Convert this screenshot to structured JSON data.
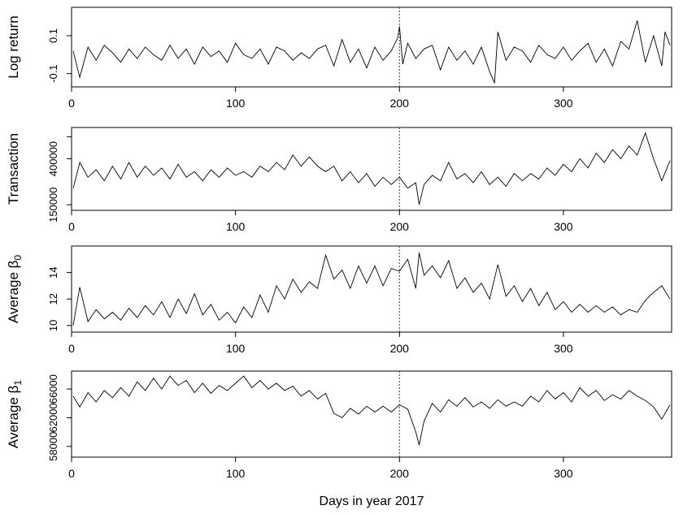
{
  "figure": {
    "xlabel": "Days in year 2017",
    "vline_x": 200,
    "vline_color": "#cc0000"
  },
  "chart_data": [
    {
      "type": "line",
      "ylabel": "Log return",
      "ylabel_sub": "",
      "xlim": [
        0,
        366
      ],
      "ylim": [
        -0.17,
        0.25
      ],
      "xticks": [
        0,
        100,
        200,
        300
      ],
      "yticks": [
        -0.1,
        0.1
      ],
      "ytick_labels": [
        "-0.1",
        "0.1"
      ],
      "series": [
        {
          "x": [
            1,
            5,
            10,
            15,
            20,
            25,
            30,
            35,
            40,
            45,
            50,
            55,
            60,
            65,
            70,
            75,
            80,
            85,
            90,
            95,
            100,
            105,
            110,
            115,
            120,
            125,
            130,
            135,
            140,
            145,
            150,
            155,
            160,
            165,
            170,
            175,
            180,
            185,
            190,
            195,
            199,
            200,
            202,
            205,
            210,
            215,
            220,
            225,
            230,
            235,
            240,
            245,
            250,
            255,
            258,
            260,
            265,
            270,
            275,
            280,
            285,
            290,
            295,
            300,
            305,
            310,
            315,
            320,
            325,
            330,
            335,
            340,
            345,
            350,
            355,
            360,
            362,
            365
          ],
          "y": [
            0.02,
            -0.12,
            0.04,
            -0.03,
            0.05,
            0.01,
            -0.04,
            0.03,
            -0.02,
            0.04,
            0.0,
            -0.03,
            0.05,
            -0.02,
            0.03,
            -0.05,
            0.04,
            -0.01,
            0.02,
            -0.04,
            0.06,
            0.0,
            -0.02,
            0.03,
            -0.05,
            0.04,
            0.02,
            -0.03,
            0.01,
            -0.02,
            0.03,
            0.05,
            -0.06,
            0.08,
            -0.04,
            0.03,
            -0.07,
            0.04,
            -0.03,
            0.02,
            0.09,
            0.15,
            -0.05,
            0.06,
            -0.02,
            0.03,
            0.05,
            -0.08,
            0.04,
            -0.03,
            0.02,
            -0.05,
            0.04,
            -0.09,
            -0.15,
            0.12,
            -0.03,
            0.04,
            0.02,
            -0.04,
            0.05,
            0.0,
            -0.02,
            0.04,
            -0.03,
            0.02,
            0.06,
            -0.04,
            0.03,
            -0.06,
            0.07,
            0.03,
            0.18,
            -0.04,
            0.1,
            -0.06,
            0.12,
            0.05
          ]
        }
      ]
    },
    {
      "type": "line",
      "ylabel": "Transaction",
      "ylabel_sub": "",
      "xlim": [
        0,
        366
      ],
      "ylim": [
        120000,
        570000
      ],
      "xticks": [
        0,
        100,
        200,
        300
      ],
      "yticks": [
        150000,
        400000
      ],
      "ytick_labels": [
        "150000",
        "400000"
      ],
      "extra_ytick": 520000,
      "series": [
        {
          "x": [
            1,
            5,
            10,
            15,
            20,
            25,
            30,
            35,
            40,
            45,
            50,
            55,
            60,
            65,
            70,
            75,
            80,
            85,
            90,
            95,
            100,
            105,
            110,
            115,
            120,
            125,
            130,
            135,
            140,
            145,
            150,
            155,
            160,
            165,
            170,
            175,
            180,
            185,
            190,
            195,
            200,
            205,
            210,
            212,
            215,
            220,
            225,
            230,
            235,
            240,
            245,
            250,
            255,
            260,
            265,
            270,
            275,
            280,
            285,
            290,
            295,
            300,
            305,
            310,
            315,
            320,
            325,
            330,
            335,
            340,
            345,
            350,
            355,
            360,
            365
          ],
          "y": [
            240000,
            380000,
            300000,
            340000,
            280000,
            360000,
            290000,
            380000,
            300000,
            360000,
            310000,
            350000,
            290000,
            370000,
            300000,
            330000,
            280000,
            340000,
            300000,
            350000,
            310000,
            330000,
            300000,
            360000,
            330000,
            380000,
            340000,
            420000,
            360000,
            410000,
            360000,
            330000,
            360000,
            280000,
            330000,
            270000,
            320000,
            250000,
            300000,
            260000,
            300000,
            240000,
            270000,
            150000,
            260000,
            310000,
            280000,
            380000,
            290000,
            320000,
            270000,
            330000,
            260000,
            300000,
            250000,
            320000,
            280000,
            320000,
            290000,
            350000,
            310000,
            370000,
            330000,
            400000,
            350000,
            430000,
            380000,
            450000,
            400000,
            470000,
            420000,
            540000,
            400000,
            280000,
            390000
          ]
        }
      ]
    },
    {
      "type": "line",
      "ylabel": "Average ",
      "ylabel_sub": "0",
      "ylabel_symbol": "β",
      "xlim": [
        0,
        366
      ],
      "ylim": [
        9.5,
        16.0
      ],
      "xticks": [
        0,
        100,
        200,
        300
      ],
      "yticks": [
        10,
        12,
        14
      ],
      "ytick_labels": [
        "10",
        "12",
        "14"
      ],
      "series": [
        {
          "x": [
            1,
            5,
            10,
            15,
            20,
            25,
            30,
            35,
            40,
            45,
            50,
            55,
            60,
            65,
            70,
            75,
            80,
            85,
            90,
            95,
            100,
            105,
            110,
            115,
            120,
            125,
            130,
            135,
            140,
            145,
            150,
            155,
            160,
            165,
            170,
            175,
            180,
            185,
            190,
            195,
            200,
            205,
            210,
            212,
            215,
            220,
            225,
            230,
            235,
            240,
            245,
            250,
            255,
            260,
            265,
            270,
            275,
            280,
            285,
            290,
            295,
            300,
            305,
            310,
            315,
            320,
            325,
            330,
            335,
            340,
            345,
            350,
            355,
            360,
            365
          ],
          "y": [
            10.0,
            12.9,
            10.3,
            11.2,
            10.5,
            11.0,
            10.4,
            11.3,
            10.6,
            11.5,
            10.8,
            11.8,
            10.6,
            12.0,
            10.9,
            12.4,
            10.8,
            11.6,
            10.4,
            11.0,
            10.2,
            11.4,
            10.6,
            12.3,
            11.0,
            13.0,
            12.0,
            13.5,
            12.5,
            13.3,
            12.8,
            15.3,
            13.5,
            14.2,
            12.8,
            14.5,
            13.2,
            14.5,
            13.0,
            14.3,
            14.1,
            15.0,
            12.8,
            15.5,
            13.8,
            14.5,
            13.6,
            14.9,
            12.8,
            13.6,
            12.5,
            13.2,
            12.0,
            14.6,
            12.2,
            13.0,
            11.8,
            12.8,
            11.5,
            12.5,
            11.2,
            11.8,
            11.0,
            11.6,
            11.0,
            11.5,
            11.0,
            11.4,
            10.8,
            11.2,
            11.0,
            11.9,
            12.5,
            13.0,
            12.0
          ]
        }
      ]
    },
    {
      "type": "line",
      "ylabel": "Average ",
      "ylabel_sub": "1",
      "ylabel_symbol": "β",
      "xlim": [
        0,
        366
      ],
      "ylim": [
        56500,
        68500
      ],
      "xticks": [
        0,
        100,
        200,
        300
      ],
      "yticks": [
        58000,
        62000,
        66000
      ],
      "ytick_labels": [
        "58000",
        "62000",
        "66000"
      ],
      "series": [
        {
          "x": [
            1,
            5,
            10,
            15,
            20,
            25,
            30,
            35,
            40,
            45,
            50,
            55,
            60,
            65,
            70,
            75,
            80,
            85,
            90,
            95,
            100,
            105,
            110,
            115,
            120,
            125,
            130,
            135,
            140,
            145,
            150,
            155,
            160,
            165,
            170,
            175,
            180,
            185,
            190,
            195,
            200,
            205,
            210,
            212,
            215,
            220,
            225,
            230,
            235,
            240,
            245,
            250,
            255,
            260,
            265,
            270,
            275,
            280,
            285,
            290,
            295,
            300,
            305,
            310,
            315,
            320,
            325,
            330,
            335,
            340,
            345,
            350,
            355,
            360,
            365
          ],
          "y": [
            65000,
            63500,
            65500,
            64200,
            65800,
            64800,
            66200,
            65000,
            67000,
            65800,
            67500,
            66000,
            67800,
            66500,
            67200,
            65500,
            66800,
            65400,
            66500,
            65800,
            66800,
            67800,
            66200,
            67200,
            66000,
            66800,
            65800,
            66400,
            65000,
            65800,
            64600,
            65400,
            62600,
            62000,
            63300,
            62500,
            63600,
            62800,
            63600,
            62800,
            63800,
            63200,
            60000,
            58200,
            61500,
            64000,
            62800,
            64500,
            63600,
            64800,
            63500,
            64200,
            63300,
            64500,
            63600,
            64200,
            63600,
            65000,
            64200,
            65800,
            64600,
            65500,
            64200,
            66200,
            65000,
            65800,
            64400,
            65200,
            64600,
            65800,
            65000,
            64400,
            63500,
            61800,
            63800
          ]
        }
      ]
    }
  ]
}
